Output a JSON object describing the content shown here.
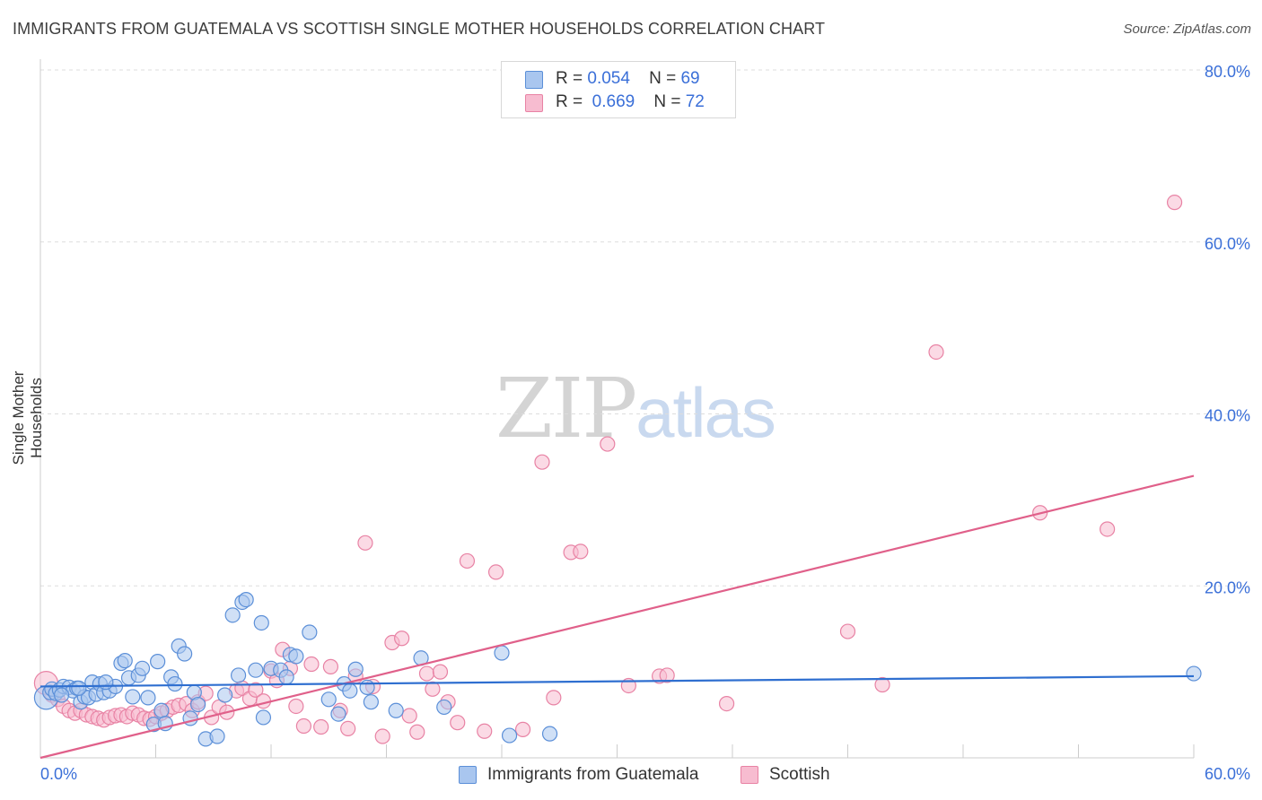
{
  "title": "IMMIGRANTS FROM GUATEMALA VS SCOTTISH SINGLE MOTHER HOUSEHOLDS CORRELATION CHART",
  "source": "Source: ZipAtlas.com",
  "watermark": {
    "part1": "ZIP",
    "part2": "atlas"
  },
  "legend": {
    "r_label": "R =",
    "n_label": "N =",
    "rows": [
      {
        "r": "0.054",
        "n": "69"
      },
      {
        "r": "0.669",
        "n": "72"
      }
    ]
  },
  "colors": {
    "blue_fill": "#a9c6ef",
    "blue_stroke": "#5b8fd8",
    "blue_line": "#2f6fd0",
    "pink_fill": "#f7bcd0",
    "pink_stroke": "#e882a4",
    "pink_line": "#e0608a",
    "axis_text": "#3a6fd8",
    "grid": "#dddddd"
  },
  "chart_data": {
    "type": "scatter",
    "title": "IMMIGRANTS FROM GUATEMALA VS SCOTTISH SINGLE MOTHER HOUSEHOLDS CORRELATION CHART",
    "xlabel": "",
    "ylabel": "Single Mother Households",
    "xlim": [
      0,
      60
    ],
    "ylim": [
      0,
      80
    ],
    "x_tick_labels": [
      "0.0%",
      "60.0%"
    ],
    "y_ticks": [
      20,
      40,
      60,
      80
    ],
    "y_tick_labels": [
      "20.0%",
      "40.0%",
      "60.0%",
      "80.0%"
    ],
    "grid": true,
    "legend_position": "top-center",
    "series": [
      {
        "name": "Immigrants from Guatemala",
        "color": "#a9c6ef",
        "trend": {
          "x": [
            0,
            60
          ],
          "y": [
            8.3,
            9.5
          ]
        },
        "points": [
          [
            0.3,
            7.0
          ],
          [
            0.5,
            7.6
          ],
          [
            0.6,
            8.0
          ],
          [
            0.8,
            7.5
          ],
          [
            1.0,
            7.9
          ],
          [
            1.2,
            8.3
          ],
          [
            1.5,
            8.2
          ],
          [
            1.7,
            7.8
          ],
          [
            1.9,
            8.1
          ],
          [
            2.1,
            6.5
          ],
          [
            2.3,
            7.1
          ],
          [
            2.5,
            7.0
          ],
          [
            2.7,
            8.8
          ],
          [
            2.9,
            7.4
          ],
          [
            3.1,
            8.6
          ],
          [
            3.3,
            7.6
          ],
          [
            3.6,
            7.8
          ],
          [
            3.9,
            8.3
          ],
          [
            4.2,
            11.0
          ],
          [
            4.4,
            11.3
          ],
          [
            4.6,
            9.3
          ],
          [
            4.8,
            7.1
          ],
          [
            5.1,
            9.6
          ],
          [
            5.3,
            10.4
          ],
          [
            5.6,
            7.0
          ],
          [
            5.9,
            3.9
          ],
          [
            6.1,
            11.2
          ],
          [
            6.3,
            5.5
          ],
          [
            6.5,
            4.0
          ],
          [
            6.8,
            9.4
          ],
          [
            7.0,
            8.6
          ],
          [
            7.2,
            13.0
          ],
          [
            7.5,
            12.1
          ],
          [
            7.8,
            4.6
          ],
          [
            8.0,
            7.6
          ],
          [
            8.2,
            6.2
          ],
          [
            8.6,
            2.2
          ],
          [
            9.2,
            2.5
          ],
          [
            9.6,
            7.3
          ],
          [
            10.0,
            16.6
          ],
          [
            10.3,
            9.6
          ],
          [
            10.5,
            18.1
          ],
          [
            10.7,
            18.4
          ],
          [
            11.2,
            10.2
          ],
          [
            11.5,
            15.7
          ],
          [
            11.6,
            4.7
          ],
          [
            12.0,
            10.4
          ],
          [
            12.5,
            10.2
          ],
          [
            12.8,
            9.4
          ],
          [
            13.0,
            12.0
          ],
          [
            13.3,
            11.8
          ],
          [
            14.0,
            14.6
          ],
          [
            15.0,
            6.8
          ],
          [
            15.5,
            5.1
          ],
          [
            15.8,
            8.6
          ],
          [
            16.1,
            7.8
          ],
          [
            16.4,
            10.3
          ],
          [
            17.0,
            8.2
          ],
          [
            17.2,
            6.5
          ],
          [
            18.5,
            5.5
          ],
          [
            19.8,
            11.6
          ],
          [
            21.0,
            5.9
          ],
          [
            24.0,
            12.2
          ],
          [
            24.4,
            2.6
          ],
          [
            26.5,
            2.8
          ],
          [
            60.0,
            9.8
          ],
          [
            2.0,
            8.1
          ],
          [
            1.1,
            7.3
          ],
          [
            3.4,
            8.8
          ]
        ]
      },
      {
        "name": "Scottish",
        "color": "#f7bcd0",
        "trend": {
          "x": [
            0,
            60
          ],
          "y": [
            0,
            32.8
          ]
        },
        "points": [
          [
            0.3,
            8.7
          ],
          [
            0.6,
            7.3
          ],
          [
            0.9,
            6.8
          ],
          [
            1.2,
            6.0
          ],
          [
            1.5,
            5.5
          ],
          [
            1.8,
            5.2
          ],
          [
            2.1,
            5.5
          ],
          [
            2.4,
            5.0
          ],
          [
            2.7,
            4.8
          ],
          [
            3.0,
            4.6
          ],
          [
            3.3,
            4.4
          ],
          [
            3.6,
            4.7
          ],
          [
            3.9,
            4.9
          ],
          [
            4.2,
            5.0
          ],
          [
            4.5,
            4.8
          ],
          [
            4.8,
            5.2
          ],
          [
            5.1,
            5.0
          ],
          [
            5.4,
            4.6
          ],
          [
            5.7,
            4.5
          ],
          [
            6.0,
            4.8
          ],
          [
            6.3,
            5.2
          ],
          [
            6.6,
            5.5
          ],
          [
            6.9,
            5.9
          ],
          [
            7.2,
            6.1
          ],
          [
            7.6,
            6.3
          ],
          [
            7.9,
            5.5
          ],
          [
            8.2,
            6.5
          ],
          [
            8.6,
            7.5
          ],
          [
            8.9,
            4.7
          ],
          [
            9.3,
            5.9
          ],
          [
            9.7,
            5.3
          ],
          [
            10.2,
            7.8
          ],
          [
            10.5,
            8.1
          ],
          [
            10.9,
            6.9
          ],
          [
            11.2,
            7.9
          ],
          [
            11.6,
            6.6
          ],
          [
            12.0,
            10.1
          ],
          [
            12.3,
            9.0
          ],
          [
            12.6,
            12.6
          ],
          [
            13.0,
            10.4
          ],
          [
            13.3,
            6.0
          ],
          [
            13.7,
            3.7
          ],
          [
            14.1,
            10.9
          ],
          [
            14.6,
            3.6
          ],
          [
            15.1,
            10.6
          ],
          [
            15.6,
            5.5
          ],
          [
            16.0,
            3.4
          ],
          [
            16.4,
            9.5
          ],
          [
            16.9,
            25.0
          ],
          [
            17.3,
            8.3
          ],
          [
            17.8,
            2.5
          ],
          [
            18.3,
            13.4
          ],
          [
            18.8,
            13.9
          ],
          [
            19.2,
            4.9
          ],
          [
            19.6,
            3.0
          ],
          [
            20.1,
            9.8
          ],
          [
            20.4,
            8.0
          ],
          [
            20.8,
            10.0
          ],
          [
            21.2,
            6.5
          ],
          [
            21.7,
            4.1
          ],
          [
            22.2,
            22.9
          ],
          [
            23.1,
            3.1
          ],
          [
            23.7,
            21.6
          ],
          [
            25.1,
            3.3
          ],
          [
            26.1,
            34.4
          ],
          [
            26.7,
            7.0
          ],
          [
            27.6,
            23.9
          ],
          [
            28.1,
            24.0
          ],
          [
            29.5,
            36.5
          ],
          [
            30.6,
            8.4
          ],
          [
            32.2,
            9.5
          ],
          [
            32.6,
            9.6
          ]
        ],
        "outliers": [
          [
            43.8,
            8.5
          ],
          [
            46.6,
            47.2
          ],
          [
            59.0,
            64.6
          ],
          [
            52.0,
            28.5
          ],
          [
            55.5,
            26.6
          ],
          [
            42.0,
            14.7
          ],
          [
            35.7,
            6.3
          ]
        ]
      }
    ]
  },
  "axis": {
    "y_title": "Single Mother Households",
    "x_min_label": "0.0%",
    "x_max_label": "60.0%"
  },
  "bottom_legend": [
    {
      "label": "Immigrants from Guatemala"
    },
    {
      "label": "Scottish"
    }
  ]
}
